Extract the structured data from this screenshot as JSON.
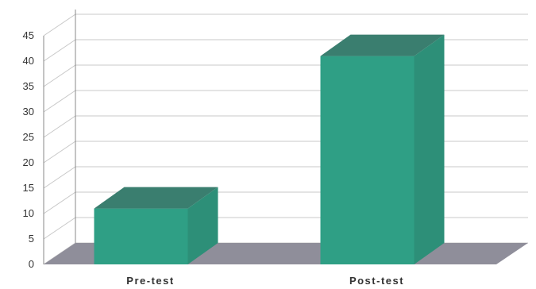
{
  "chart_data": {
    "type": "bar",
    "style": "3d",
    "title": "",
    "xlabel": "",
    "ylabel": "",
    "categories": [
      "Pre-test",
      "Post-test"
    ],
    "values": [
      11,
      41
    ],
    "ylim": [
      0,
      45
    ],
    "yticks": [
      "0",
      "5",
      "10",
      "15",
      "20",
      "25",
      "30",
      "35",
      "40",
      "45"
    ],
    "grid": true,
    "legend": "none",
    "colors": {
      "bar_front": "#2f9f85",
      "bar_top": "#3a7e6f",
      "bar_side": "#2d8f78",
      "floor": "#8f8e9a",
      "gridline": "#c8c8c8"
    }
  }
}
